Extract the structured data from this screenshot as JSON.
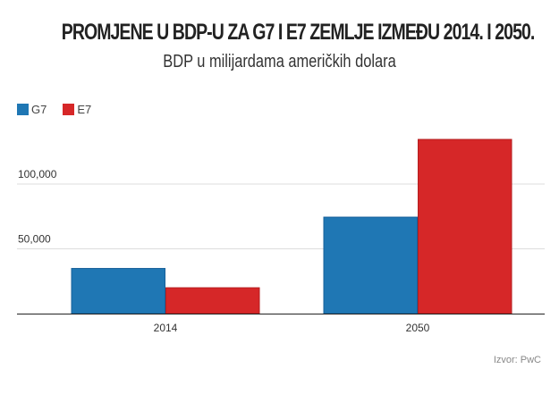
{
  "title": "PROMJENE U BDP-U ZA G7 I E7 ZEMLJE IZMEĐU 2014. I 2050.",
  "subtitle": "BDP u milijardama američkih dolara",
  "source": "Izvor: PwC",
  "colors": {
    "G7": "#1f77b4",
    "E7": "#d62728"
  },
  "chart_data": {
    "type": "bar",
    "title": "PROMJENE U BDP-U ZA G7 I E7 ZEMLJE IZMEĐU 2014. I 2050.",
    "subtitle": "BDP u milijardama američkih dolara",
    "xlabel": "",
    "ylabel": "",
    "categories": [
      "2014",
      "2050"
    ],
    "series": [
      {
        "name": "G7",
        "values": [
          35200,
          74800
        ]
      },
      {
        "name": "E7",
        "values": [
          20300,
          134800
        ]
      }
    ],
    "yticks": [
      50000,
      100000
    ],
    "ytick_labels": [
      "50,000",
      "100,000"
    ],
    "ylim": [
      0,
      140000
    ],
    "grid": true,
    "legend": "top-left"
  }
}
